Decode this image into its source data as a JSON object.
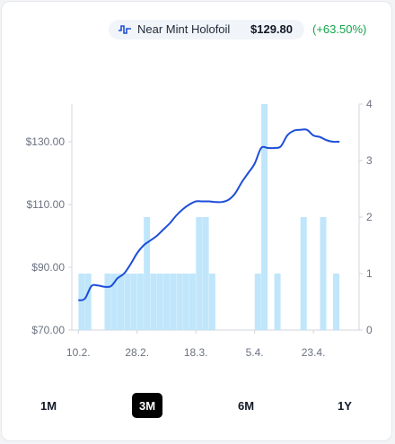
{
  "legend": {
    "icon": "price-line-icon",
    "label": "Near Mint Holofoil",
    "price": "$129.80",
    "change": "(+63.50%)"
  },
  "colors": {
    "line": "#1d4ed8",
    "bar": "#bfe6fb",
    "change": "#16a34a",
    "active_button": "#000000"
  },
  "ranges": [
    {
      "label": "1M",
      "active": false
    },
    {
      "label": "3M",
      "active": true
    },
    {
      "label": "6M",
      "active": false
    },
    {
      "label": "1Y",
      "active": false
    }
  ],
  "chart_data": {
    "type": "bar+line",
    "left_axis": {
      "ticks": [
        70,
        90,
        110,
        130
      ],
      "tick_labels": [
        "$70.00",
        "$90.00",
        "$110.00",
        "$130.00"
      ],
      "range": [
        70,
        142
      ]
    },
    "right_axis": {
      "ticks": [
        0,
        1,
        2,
        3,
        4
      ],
      "tick_labels": [
        "0",
        "1",
        "2",
        "3",
        "4"
      ],
      "range": [
        0,
        4
      ]
    },
    "x_ticks": [
      {
        "day": 0,
        "label": "10.2."
      },
      {
        "day": 18,
        "label": "28.2."
      },
      {
        "day": 36,
        "label": "18.3."
      },
      {
        "day": 54,
        "label": "5.4."
      },
      {
        "day": 72,
        "label": "23.4."
      }
    ],
    "x_range": [
      -2,
      86
    ],
    "series": [
      {
        "type": "bar",
        "axis": "right",
        "days": [
          1,
          3,
          9,
          11,
          13,
          15,
          17,
          19,
          21,
          23,
          25,
          27,
          29,
          31,
          33,
          35,
          37,
          39,
          41,
          55,
          57,
          61,
          69,
          75,
          79
        ],
        "values": [
          1,
          1,
          1,
          1,
          1,
          1,
          1,
          1,
          2,
          1,
          1,
          1,
          1,
          1,
          1,
          1,
          2,
          2,
          1,
          1,
          4,
          1,
          2,
          2,
          1
        ]
      },
      {
        "type": "line",
        "axis": "left",
        "points": [
          [
            0,
            79.5
          ],
          [
            2,
            80
          ],
          [
            4,
            84
          ],
          [
            6,
            84.2
          ],
          [
            8,
            83.8
          ],
          [
            10,
            84
          ],
          [
            12,
            86.5
          ],
          [
            14,
            88
          ],
          [
            16,
            91
          ],
          [
            18,
            94.5
          ],
          [
            20,
            97
          ],
          [
            22,
            98.5
          ],
          [
            24,
            100
          ],
          [
            26,
            102
          ],
          [
            28,
            104
          ],
          [
            30,
            106.5
          ],
          [
            32,
            108.5
          ],
          [
            34,
            110
          ],
          [
            36,
            111
          ],
          [
            38,
            111
          ],
          [
            40,
            111
          ],
          [
            42,
            110.8
          ],
          [
            44,
            110.8
          ],
          [
            46,
            111.5
          ],
          [
            48,
            113.5
          ],
          [
            50,
            117
          ],
          [
            52,
            120
          ],
          [
            54,
            123
          ],
          [
            56,
            128
          ],
          [
            58,
            128
          ],
          [
            60,
            128
          ],
          [
            62,
            128.5
          ],
          [
            64,
            132
          ],
          [
            66,
            133.5
          ],
          [
            68,
            133.8
          ],
          [
            70,
            133.8
          ],
          [
            72,
            132
          ],
          [
            74,
            131.5
          ],
          [
            76,
            130.5
          ],
          [
            78,
            130
          ],
          [
            80,
            130
          ]
        ]
      }
    ]
  }
}
